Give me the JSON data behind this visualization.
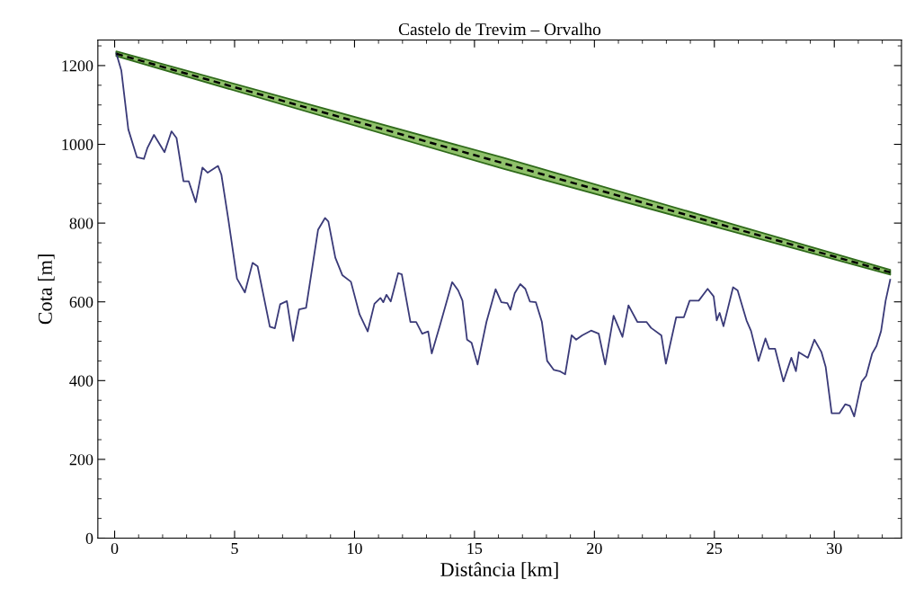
{
  "chart_data": {
    "type": "line",
    "title": "Castelo de Trevim – Orvalho",
    "xlabel": "Distância [km]",
    "ylabel": "Cota [m]",
    "xlim": [
      -0.7,
      32.8
    ],
    "ylim": [
      0,
      1265
    ],
    "xticks": [
      0,
      5,
      10,
      15,
      20,
      25,
      30
    ],
    "yticks": [
      0,
      200,
      400,
      600,
      800,
      1000,
      1200
    ],
    "grid": false,
    "legend": false,
    "marker": "none",
    "series": [
      {
        "color": "#3a3a78",
        "line_style": "solid",
        "x": [
          0.07,
          0.28,
          0.57,
          0.93,
          1.22,
          1.36,
          1.64,
          2.08,
          2.37,
          2.58,
          2.87,
          3.09,
          3.38,
          3.66,
          3.88,
          4.31,
          4.45,
          4.74,
          5.1,
          5.43,
          5.75,
          5.96,
          6.47,
          6.68,
          6.9,
          7.18,
          7.44,
          7.69,
          7.98,
          8.48,
          8.77,
          8.91,
          9.2,
          9.49,
          9.85,
          10.21,
          10.55,
          10.83,
          11.08,
          11.2,
          11.33,
          11.51,
          11.82,
          11.97,
          12.33,
          12.57,
          12.82,
          13.07,
          13.22,
          13.57,
          14.07,
          14.32,
          14.5,
          14.69,
          14.88,
          15.13,
          15.5,
          15.88,
          16.12,
          16.37,
          16.5,
          16.68,
          16.91,
          17.12,
          17.31,
          17.56,
          17.81,
          18.03,
          18.31,
          18.55,
          18.78,
          19.05,
          19.24,
          19.49,
          19.86,
          20.18,
          20.45,
          20.8,
          21.17,
          21.42,
          21.79,
          22.17,
          22.36,
          22.79,
          22.98,
          23.41,
          23.73,
          23.97,
          24.35,
          24.72,
          24.97,
          25.1,
          25.22,
          25.38,
          25.78,
          25.97,
          26.34,
          26.53,
          26.84,
          27.13,
          27.28,
          27.53,
          27.88,
          28.21,
          28.4,
          28.52,
          28.9,
          29.17,
          29.46,
          29.64,
          29.89,
          30.21,
          30.46,
          30.65,
          30.83,
          31.14,
          31.33,
          31.58,
          31.76,
          31.95,
          32.14,
          32.33
        ],
        "values": [
          1231,
          1187,
          1038,
          967,
          963,
          990,
          1024,
          980,
          1033,
          1016,
          906,
          906,
          853,
          941,
          928,
          945,
          923,
          809,
          659,
          624,
          699,
          690,
          537,
          533,
          594,
          602,
          501,
          581,
          585,
          783,
          813,
          804,
          712,
          668,
          651,
          568,
          525,
          595,
          610,
          599,
          618,
          601,
          673,
          670,
          549,
          549,
          519,
          525,
          469,
          542,
          650,
          629,
          603,
          504,
          496,
          441,
          549,
          632,
          599,
          597,
          580,
          622,
          645,
          633,
          601,
          599,
          549,
          450,
          427,
          424,
          416,
          515,
          504,
          515,
          527,
          519,
          441,
          565,
          511,
          591,
          549,
          549,
          534,
          515,
          443,
          561,
          561,
          603,
          603,
          633,
          614,
          553,
          572,
          538,
          637,
          629,
          553,
          526,
          450,
          507,
          481,
          481,
          398,
          458,
          424,
          472,
          458,
          504,
          473,
          435,
          317,
          317,
          340,
          336,
          309,
          397,
          412,
          469,
          488,
          526,
          603,
          656
        ]
      },
      {
        "color": "#000000",
        "line_style": "dashed",
        "x": [
          0.07,
          16.2,
          32.33
        ],
        "values": [
          1230,
          952,
          675
        ],
        "lower": [
          1224,
          938,
          669
        ],
        "upper": [
          1236,
          966,
          681
        ]
      }
    ]
  }
}
